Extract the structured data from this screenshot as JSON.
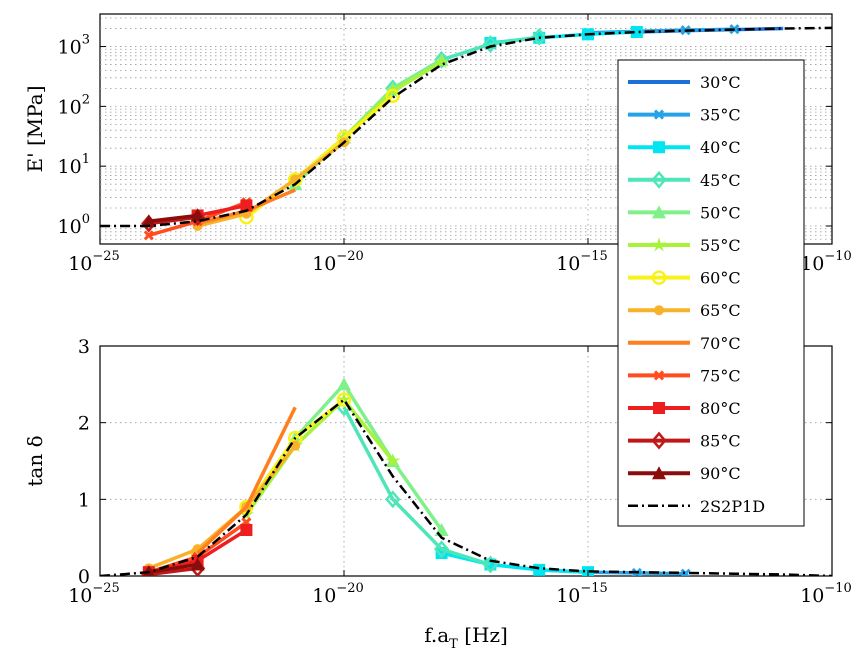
{
  "chart_data": [
    {
      "type": "scatter",
      "panel": "storage-modulus",
      "ylabel": "E' [MPa]",
      "xlabel": "",
      "xscale": "log",
      "yscale": "log",
      "xlim": [
        1e-25,
        1e-10
      ],
      "ylim": [
        0.5,
        3500
      ],
      "x_ticks": [
        {
          "base": "10",
          "exp": "−25",
          "value": 1e-25
        },
        {
          "base": "10",
          "exp": "−20",
          "value": 1e-20
        },
        {
          "base": "10",
          "exp": "−15",
          "value": 1e-15
        },
        {
          "base": "10",
          "exp": "−10",
          "value": 1e-10
        }
      ],
      "y_ticks": [
        {
          "base": "10",
          "exp": "0",
          "value": 1
        },
        {
          "base": "10",
          "exp": "1",
          "value": 10
        },
        {
          "base": "10",
          "exp": "2",
          "value": 100
        },
        {
          "base": "10",
          "exp": "3",
          "value": 1000
        }
      ],
      "grid": true,
      "series": [
        {
          "name": "30°C",
          "color": "#1f6fd8",
          "marker": "none",
          "x": [
            1e-14,
            1e-13,
            1e-12,
            1e-11
          ],
          "y": [
            1750,
            1850,
            1920,
            2000
          ]
        },
        {
          "name": "35°C",
          "color": "#25a3e8",
          "marker": "x",
          "x": [
            1e-15,
            1e-14,
            1e-13,
            1e-12
          ],
          "y": [
            1700,
            1800,
            1880,
            1950
          ]
        },
        {
          "name": "40°C",
          "color": "#00e5f2",
          "marker": "square",
          "x": [
            1e-17,
            1e-16,
            1e-15,
            1e-14
          ],
          "y": [
            1150,
            1400,
            1600,
            1750
          ]
        },
        {
          "name": "45°C",
          "color": "#4ee6b8",
          "marker": "diamond",
          "x": [
            1e-19,
            1e-18,
            1e-17,
            1e-16
          ],
          "y": [
            200,
            600,
            1100,
            1450
          ]
        },
        {
          "name": "50°C",
          "color": "#7ff08a",
          "marker": "triangle",
          "x": [
            1e-21,
            1e-20,
            1e-19,
            1e-18
          ],
          "y": [
            5,
            30,
            200,
            600
          ]
        },
        {
          "name": "55°C",
          "color": "#a8f23c",
          "marker": "star",
          "x": [
            1e-21,
            1e-20,
            1e-19,
            1e-18
          ],
          "y": [
            6,
            30,
            180,
            550
          ]
        },
        {
          "name": "60°C",
          "color": "#f6f21a",
          "marker": "circle",
          "x": [
            1e-22,
            1e-21,
            1e-20,
            1e-19
          ],
          "y": [
            1.4,
            6,
            30,
            150
          ]
        },
        {
          "name": "65°C",
          "color": "#f8b22a",
          "marker": "dot",
          "x": [
            1e-23,
            1e-22,
            1e-21,
            1e-20
          ],
          "y": [
            1.0,
            1.6,
            6,
            25
          ]
        },
        {
          "name": "70°C",
          "color": "#ff7f1e",
          "marker": "none",
          "x": [
            1e-23,
            1e-22,
            1e-21
          ],
          "y": [
            1.1,
            1.8,
            4
          ]
        },
        {
          "name": "75°C",
          "color": "#ff4d1f",
          "marker": "x",
          "x": [
            1e-24,
            1e-23,
            1e-22
          ],
          "y": [
            0.7,
            1.2,
            2.5
          ]
        },
        {
          "name": "80°C",
          "color": "#ee1e1e",
          "marker": "square",
          "x": [
            1e-23,
            1e-22
          ],
          "y": [
            1.5,
            2.2
          ]
        },
        {
          "name": "85°C",
          "color": "#c01818",
          "marker": "diamond",
          "x": [
            1e-24,
            1e-23
          ],
          "y": [
            1.1,
            1.4
          ]
        },
        {
          "name": "90°C",
          "color": "#8a0c0c",
          "marker": "triangle",
          "x": [
            1e-24,
            1e-23
          ],
          "y": [
            1.2,
            1.5
          ]
        },
        {
          "name": "2S2P1D",
          "color": "#000000",
          "marker": "dashdot",
          "x": [
            1e-25,
            1e-24,
            1e-23,
            1e-22,
            1e-21,
            1e-20,
            1e-19,
            1e-18,
            1e-17,
            1e-16,
            1e-15,
            1e-14,
            1e-13,
            1e-12,
            1e-11,
            1e-10
          ],
          "y": [
            1.0,
            1.0,
            1.2,
            1.8,
            5,
            25,
            140,
            500,
            1000,
            1400,
            1600,
            1750,
            1850,
            1920,
            2000,
            2050
          ]
        }
      ]
    },
    {
      "type": "scatter",
      "panel": "loss-factor",
      "ylabel": "tan δ",
      "xlabel": "f.aT [Hz]",
      "xlabel_main": "f.a",
      "xlabel_sub": "T",
      "xlabel_unit": " [Hz]",
      "xscale": "log",
      "yscale": "linear",
      "xlim": [
        1e-25,
        1e-10
      ],
      "ylim": [
        0,
        3
      ],
      "x_ticks": [
        {
          "base": "10",
          "exp": "−25",
          "value": 1e-25
        },
        {
          "base": "10",
          "exp": "−20",
          "value": 1e-20
        },
        {
          "base": "10",
          "exp": "−15",
          "value": 1e-15
        },
        {
          "base": "10",
          "exp": "−10",
          "value": 1e-10
        }
      ],
      "y_ticks": [
        {
          "label": "0",
          "value": 0
        },
        {
          "label": "1",
          "value": 1
        },
        {
          "label": "2",
          "value": 2
        },
        {
          "label": "3",
          "value": 3
        }
      ],
      "grid": true,
      "series": [
        {
          "name": "35°C",
          "color": "#25a3e8",
          "marker": "x",
          "x": [
            1e-16,
            1e-15,
            1e-14,
            1e-13
          ],
          "y": [
            0.08,
            0.05,
            0.04,
            0.03
          ]
        },
        {
          "name": "40°C",
          "color": "#00e5f2",
          "marker": "square",
          "x": [
            1e-18,
            1e-17,
            1e-16,
            1e-15
          ],
          "y": [
            0.3,
            0.15,
            0.08,
            0.05
          ]
        },
        {
          "name": "45°C",
          "color": "#4ee6b8",
          "marker": "diamond",
          "x": [
            1e-20,
            1e-19,
            1e-18,
            1e-17
          ],
          "y": [
            2.2,
            1.0,
            0.35,
            0.15
          ]
        },
        {
          "name": "50°C",
          "color": "#7ff08a",
          "marker": "triangle",
          "x": [
            1e-21,
            1e-20,
            1e-19,
            1e-18
          ],
          "y": [
            1.8,
            2.5,
            1.5,
            0.6
          ]
        },
        {
          "name": "55°C",
          "color": "#a8f23c",
          "marker": "star",
          "x": [
            1e-22,
            1e-21,
            1e-20,
            1e-19
          ],
          "y": [
            0.8,
            1.7,
            2.3,
            1.5
          ]
        },
        {
          "name": "60°C",
          "color": "#f6f21a",
          "marker": "circle",
          "x": [
            1e-23,
            1e-22,
            1e-21,
            1e-20
          ],
          "y": [
            0.3,
            0.9,
            1.8,
            2.3
          ]
        },
        {
          "name": "65°C",
          "color": "#f8b22a",
          "marker": "dot",
          "x": [
            1e-24,
            1e-23,
            1e-22,
            1e-21
          ],
          "y": [
            0.1,
            0.35,
            0.9,
            1.7
          ]
        },
        {
          "name": "70°C",
          "color": "#ff7f1e",
          "marker": "none",
          "x": [
            1e-23,
            1e-22,
            1e-21
          ],
          "y": [
            0.3,
            0.9,
            2.2
          ]
        },
        {
          "name": "75°C",
          "color": "#ff4d1f",
          "marker": "x",
          "x": [
            1e-24,
            1e-23,
            1e-22
          ],
          "y": [
            0.05,
            0.25,
            0.7
          ]
        },
        {
          "name": "80°C",
          "color": "#ee1e1e",
          "marker": "square",
          "x": [
            1e-24,
            1e-23,
            1e-22
          ],
          "y": [
            0.05,
            0.2,
            0.6
          ]
        },
        {
          "name": "85°C",
          "color": "#c01818",
          "marker": "diamond",
          "x": [
            1e-24,
            1e-23
          ],
          "y": [
            0.02,
            0.1
          ]
        },
        {
          "name": "90°C",
          "color": "#8a0c0c",
          "marker": "triangle",
          "x": [
            1e-24,
            1e-23
          ],
          "y": [
            0.05,
            0.15
          ]
        },
        {
          "name": "2S2P1D",
          "color": "#000000",
          "marker": "dashdot",
          "x": [
            1e-25,
            1e-24,
            1e-23,
            1e-22,
            1e-21,
            1e-20,
            1e-19,
            1e-18,
            1e-17,
            1e-16,
            1e-15,
            1e-14,
            1e-13,
            1e-12,
            1e-11,
            1e-10
          ],
          "y": [
            0.0,
            0.05,
            0.25,
            0.8,
            1.8,
            2.3,
            1.3,
            0.5,
            0.2,
            0.1,
            0.06,
            0.05,
            0.04,
            0.03,
            0.02,
            0.0
          ]
        }
      ]
    }
  ],
  "legend": {
    "placement": "right",
    "entries": [
      {
        "label": "30°C",
        "color": "#1f6fd8",
        "marker": "none"
      },
      {
        "label": "35°C",
        "color": "#25a3e8",
        "marker": "x"
      },
      {
        "label": "40°C",
        "color": "#00e5f2",
        "marker": "square"
      },
      {
        "label": "45°C",
        "color": "#4ee6b8",
        "marker": "diamond"
      },
      {
        "label": "50°C",
        "color": "#7ff08a",
        "marker": "triangle"
      },
      {
        "label": "55°C",
        "color": "#a8f23c",
        "marker": "star"
      },
      {
        "label": "60°C",
        "color": "#f6f21a",
        "marker": "circle"
      },
      {
        "label": "65°C",
        "color": "#f8b22a",
        "marker": "dot"
      },
      {
        "label": "70°C",
        "color": "#ff7f1e",
        "marker": "none"
      },
      {
        "label": "75°C",
        "color": "#ff4d1f",
        "marker": "x"
      },
      {
        "label": "80°C",
        "color": "#ee1e1e",
        "marker": "square"
      },
      {
        "label": "85°C",
        "color": "#c01818",
        "marker": "diamond"
      },
      {
        "label": "90°C",
        "color": "#8a0c0c",
        "marker": "triangle"
      },
      {
        "label": "2S2P1D",
        "color": "#000000",
        "marker": "dashdot"
      }
    ]
  }
}
